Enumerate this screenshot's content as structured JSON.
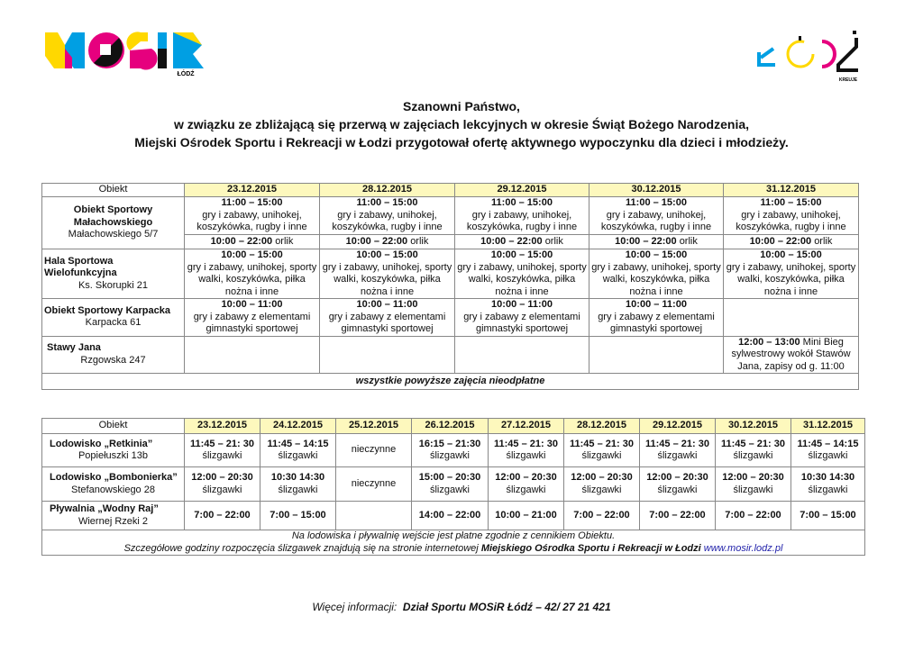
{
  "logos": {
    "left": "MOSIR ŁÓDŹ",
    "right": "ŁÓDŹ KREUJE"
  },
  "heading": [
    "Szanowni Państwo,",
    "w związku ze zbliżającą się przerwą w zajęciach lekcyjnych w okresie Świąt Bożego Narodzenia,",
    "Miejski Ośrodek Sportu i Rekreacji w Łodzi przygotował ofertę aktywnego wypoczynku dla dzieci i młodzieży."
  ],
  "table1": {
    "header": [
      "Obiekt",
      "23.12.2015",
      "28.12.2015",
      "29.12.2015",
      "30.12.2015",
      "31.12.2015"
    ],
    "malachowskiego": {
      "name": "Obiekt Sportowy Małachowskiego",
      "address": "Małachowskiego 5/7",
      "time": "11:00 – 15:00",
      "desc": "gry i zabawy, unihokej, koszykówka, rugby i inne",
      "orlik_time": "10:00 – 22:00",
      "orlik": "orlik"
    },
    "hala": {
      "name": "Hala Sportowa Wielofunkcyjna",
      "address": "Ks. Skorupki 21",
      "time": "10:00 – 15:00",
      "desc": "gry i zabawy, unihokej, sporty walki, koszykówka, piłka nożna i inne"
    },
    "karpacka": {
      "name": "Obiekt Sportowy Karpacka",
      "address": "Karpacka 61",
      "time": "10:00 – 11:00",
      "desc": "gry i zabawy z elementami gimnastyki sportowej"
    },
    "stawy": {
      "name": "Stawy Jana",
      "address": "Rzgowska 247",
      "time": "12:00 – 13:00",
      "desc": "Mini Bieg sylwestrowy wokół Stawów Jana, zapisy od g. 11:00"
    },
    "footer": "wszystkie powyższe zajęcia nieodpłatne"
  },
  "table2": {
    "header": [
      "Obiekt",
      "23.12.2015",
      "24.12.2015",
      "25.12.2015",
      "26.12.2015",
      "27.12.2015",
      "28.12.2015",
      "29.12.2015",
      "30.12.2015",
      "31.12.2015"
    ],
    "rows": [
      {
        "name": "Lodowisko „Retkinia”",
        "address": "Popiełuszki 13b",
        "cells": [
          [
            "11:45 – 21: 30",
            "ślizgawki"
          ],
          [
            "11:45 – 14:15",
            "ślizgawki"
          ],
          [
            "",
            "nieczynne"
          ],
          [
            "16:15 – 21:30",
            "ślizgawki"
          ],
          [
            "11:45 – 21: 30",
            "ślizgawki"
          ],
          [
            "11:45 – 21: 30",
            "ślizgawki"
          ],
          [
            "11:45 – 21: 30",
            "ślizgawki"
          ],
          [
            "11:45 – 21: 30",
            "ślizgawki"
          ],
          [
            "11:45 – 14:15",
            "ślizgawki"
          ]
        ]
      },
      {
        "name": "Lodowisko „Bombonierka”",
        "address": "Stefanowskiego 28",
        "cells": [
          [
            "12:00 – 20:30",
            "ślizgawki"
          ],
          [
            "10:30 14:30",
            "ślizgawki"
          ],
          [
            "",
            "nieczynne"
          ],
          [
            "15:00 – 20:30",
            "ślizgawki"
          ],
          [
            "12:00 – 20:30",
            "ślizgawki"
          ],
          [
            "12:00 – 20:30",
            "ślizgawki"
          ],
          [
            "12:00 – 20:30",
            "ślizgawki"
          ],
          [
            "12:00 – 20:30",
            "ślizgawki"
          ],
          [
            "10:30 14:30",
            "ślizgawki"
          ]
        ]
      },
      {
        "name": "Pływalnia „Wodny Raj”",
        "address": "Wiernej Rzeki 2",
        "cells": [
          [
            "7:00 – 22:00",
            ""
          ],
          [
            "7:00 – 15:00",
            ""
          ],
          [
            "",
            ""
          ],
          [
            "14:00 – 22:00",
            ""
          ],
          [
            "10:00 – 21:00",
            ""
          ],
          [
            "7:00 – 22:00",
            ""
          ],
          [
            "7:00 – 22:00",
            ""
          ],
          [
            "7:00 – 22:00",
            ""
          ],
          [
            "7:00 – 15:00",
            ""
          ]
        ]
      }
    ],
    "footer1": "Na  lodowiska i pływalnię wejście jest płatne zgodnie z cennikiem Obiektu.",
    "footer2_pre": "Szczegółowe godziny rozpoczęcia ślizgawek znajdują się na stronie internetowej",
    "footer2_bold": "Miejskiego Ośrodka Sportu i Rekreacji w Łodzi",
    "footer2_link": "www.mosir.lodz.pl"
  },
  "bottom": {
    "label": "Więcej informacji:",
    "value": "Dział Sportu MOSiR Łódź – 42/ 27 21 421"
  },
  "colors": {
    "header_bg": "#fdf8bd",
    "link": "#2222aa",
    "yellow": "#ffd800",
    "magenta": "#e6007e",
    "cyan": "#009fe3"
  }
}
